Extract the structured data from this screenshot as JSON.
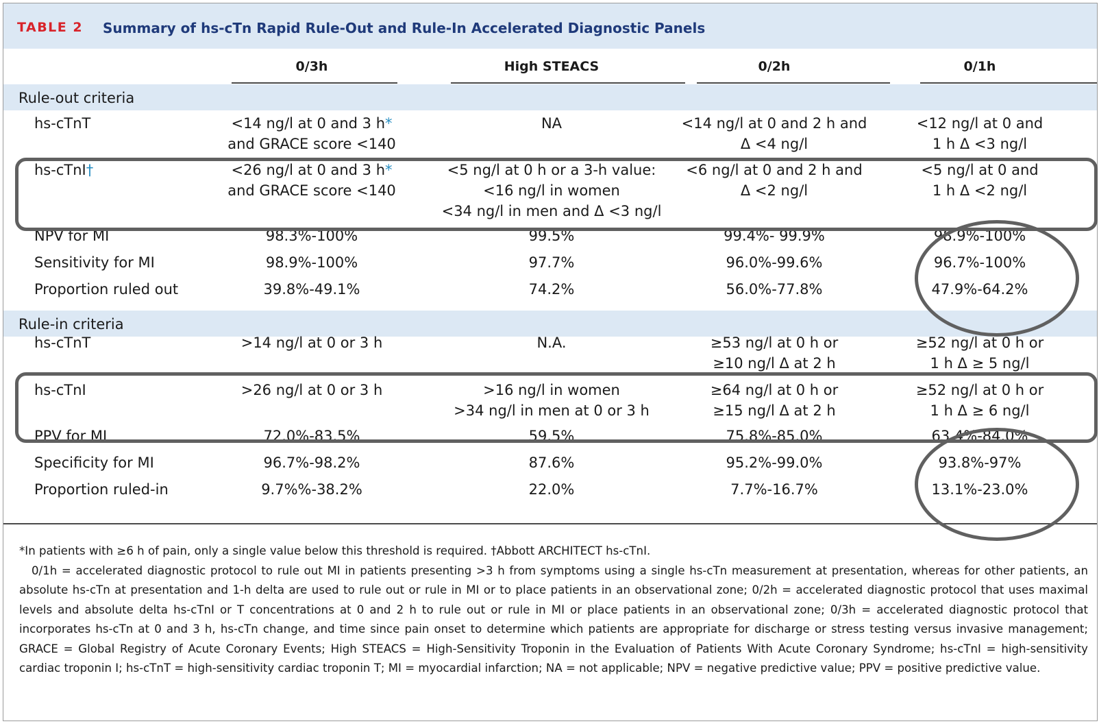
{
  "title": {
    "tag": "TABLE 2",
    "text": "Summary of hs-cTn Rapid Rule-Out and Rule-In Accelerated Diagnostic Panels"
  },
  "columns": [
    "0/3h",
    "High STEACS",
    "0/2h",
    "0/1h"
  ],
  "rule_out": {
    "heading": "Rule-out criteria",
    "rows": [
      {
        "label": "hs-cTnT",
        "mark": "",
        "cells": [
          [
            "<14 ng/l at 0 and 3 h*",
            "and GRACE score <140"
          ],
          [
            "NA"
          ],
          [
            "<14 ng/l at 0 and 2 h and",
            "Δ <4 ng/l"
          ],
          [
            "<12 ng/l at 0 and",
            "1 h Δ <3 ng/l"
          ]
        ]
      },
      {
        "label": "hs-cTnI",
        "mark": "†",
        "cells": [
          [
            "<26 ng/l at 0 and 3 h*",
            "and GRACE score <140"
          ],
          [
            "<5 ng/l at 0 h or a 3-h value:",
            "<16 ng/l in women",
            "<34 ng/l in men and Δ <3 ng/l"
          ],
          [
            "<6 ng/l at 0 and 2 h and",
            "Δ <2 ng/l"
          ],
          [
            "<5 ng/l at 0 and",
            "1 h Δ <2 ng/l"
          ]
        ]
      },
      {
        "label": "NPV for MI",
        "mark": "",
        "cells": [
          [
            "98.3%-100%"
          ],
          [
            "99.5%"
          ],
          [
            "99.4%- 99.9%"
          ],
          [
            "98.9%-100%"
          ]
        ]
      },
      {
        "label": "Sensitivity for MI",
        "mark": "",
        "cells": [
          [
            "98.9%-100%"
          ],
          [
            "97.7%"
          ],
          [
            "96.0%-99.6%"
          ],
          [
            "96.7%-100%"
          ]
        ]
      },
      {
        "label": "Proportion ruled out",
        "mark": "",
        "cells": [
          [
            "39.8%-49.1%"
          ],
          [
            "74.2%"
          ],
          [
            "56.0%-77.8%"
          ],
          [
            "47.9%-64.2%"
          ]
        ]
      }
    ]
  },
  "rule_in": {
    "heading": "Rule-in criteria",
    "rows": [
      {
        "label": "hs-cTnT",
        "mark": "",
        "cells": [
          [
            ">14 ng/l at 0 or 3 h"
          ],
          [
            "N.A."
          ],
          [
            "≥53 ng/l at 0 h or",
            "≥10 ng/l Δ at 2 h"
          ],
          [
            "≥52 ng/l at 0 h or",
            "1 h Δ ≥ 5 ng/l"
          ]
        ]
      },
      {
        "label": "hs-cTnI",
        "mark": "",
        "cells": [
          [
            ">26 ng/l at 0 or 3 h"
          ],
          [
            ">16 ng/l in women",
            ">34 ng/l in men at 0 or 3 h"
          ],
          [
            "≥64 ng/l at 0 h or",
            "≥15 ng/l Δ at 2 h"
          ],
          [
            "≥52 ng/l at 0 h or",
            "1 h Δ ≥ 6 ng/l"
          ]
        ]
      },
      {
        "label": "PPV for MI",
        "mark": "",
        "cells": [
          [
            "72.0%-83.5%"
          ],
          [
            "59.5%"
          ],
          [
            "75.8%-85.0%"
          ],
          [
            "63.4%-84.0%"
          ]
        ]
      },
      {
        "label": "Specificity for MI",
        "mark": "",
        "cells": [
          [
            "96.7%-98.2%"
          ],
          [
            "87.6%"
          ],
          [
            "95.2%-99.0%"
          ],
          [
            "93.8%-97%"
          ]
        ]
      },
      {
        "label": "Proportion ruled-in",
        "mark": "",
        "cells": [
          [
            "9.7%%-38.2%"
          ],
          [
            "22.0%"
          ],
          [
            "7.7%-16.7%"
          ],
          [
            "13.1%-23.0%"
          ]
        ]
      }
    ]
  },
  "footnotes": [
    "*In patients with ≥6 h of pain, only a single value below this threshold is required. †Abbott ARCHITECT hs-cTnI.",
    "0/1h = accelerated diagnostic protocol to rule out MI in patients presenting >3 h from symptoms using a single hs-cTn measurement at presentation, whereas for other patients, an absolute hs-cTn at presentation and 1-h delta are used to rule out or rule in MI or to place patients in an observational zone; 0/2h = accelerated diagnostic protocol that uses maximal levels and absolute delta hs-cTnI or T concentrations at 0 and 2 h to rule out or rule in MI or place patients in an observational zone; 0/3h = accelerated diagnostic protocol that incorporates hs-cTn at 0 and 3 h, hs-cTn change, and time since pain onset to determine which patients are appropriate for discharge or stress testing versus invasive management; GRACE = Global Registry of Acute Coronary Events; High STEACS = High-Sensitivity Troponin in the Evaluation of Patients With Acute Coronary Syndrome; hs-cTnI = high-sensitivity cardiac troponin I; hs-cTnT = high-sensitivity cardiac troponin T; MI = myocardial infarction; NA = not applicable; NPV = negative predictive value; PPV = positive predictive value."
  ],
  "colors": {
    "band": "#dce8f4",
    "tag": "#d8232a",
    "title": "#1f3a7a",
    "annotation": "#606060"
  }
}
